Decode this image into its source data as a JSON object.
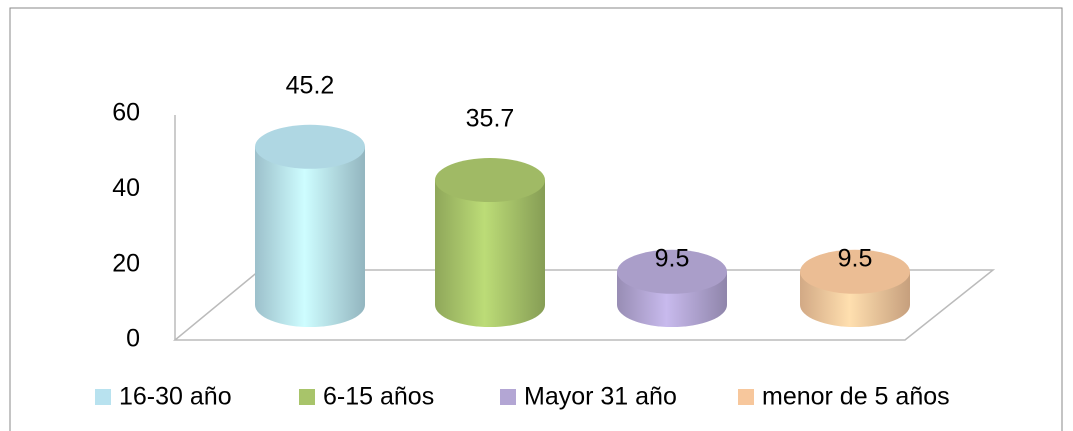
{
  "chart_data": {
    "type": "cylinder-bar",
    "series": [
      {
        "name": "16-30 año",
        "color": "#b8e2ef",
        "values": [
          45.2
        ]
      },
      {
        "name": "6-15 años",
        "color": "#a8c46a",
        "values": [
          35.7
        ]
      },
      {
        "name": "Mayor 31 año",
        "color": "#b3a6d4",
        "values": [
          9.5
        ]
      },
      {
        "name": "menor de 5 años",
        "color": "#f7c79c",
        "values": [
          9.5
        ]
      }
    ],
    "ylim": [
      0,
      60
    ],
    "yticks": [
      0,
      20,
      40,
      60
    ],
    "grid": false,
    "legend": "bottom"
  }
}
